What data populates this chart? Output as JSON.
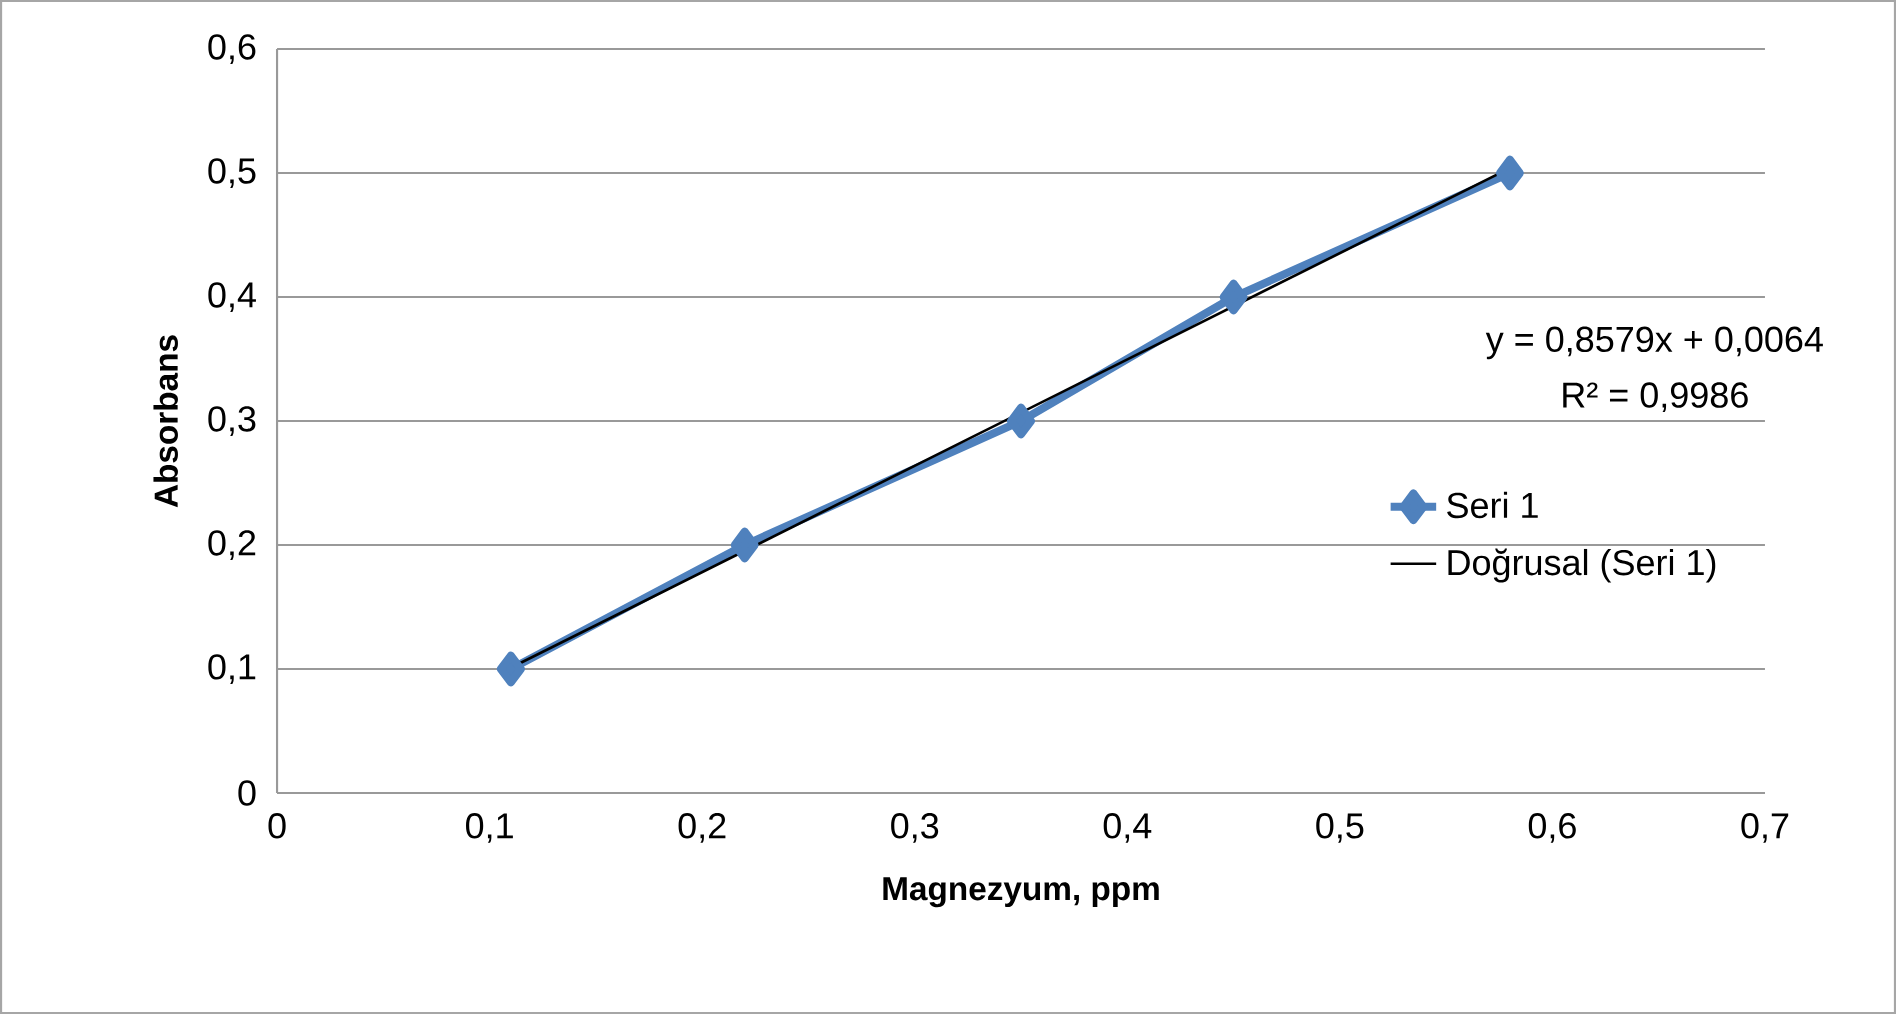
{
  "chart_data": {
    "type": "line",
    "xlabel": "Magnezyum, ppm",
    "ylabel": "Absorbans",
    "x": [
      0.11,
      0.22,
      0.35,
      0.45,
      0.58
    ],
    "series": [
      {
        "name": "Seri 1",
        "color": "#4f81bd",
        "values": [
          0.1,
          0.2,
          0.3,
          0.4,
          0.5
        ],
        "marker": "diamond"
      },
      {
        "name": "Doğrusal (Seri 1)",
        "type": "line",
        "color": "#000000",
        "x": [
          0.11,
          0.58
        ],
        "values": [
          0.101,
          0.504
        ],
        "marker": "none"
      }
    ],
    "xlim": [
      0,
      0.7
    ],
    "ylim": [
      0,
      0.6
    ],
    "xticks": [
      0,
      {
        "value": 0.1,
        "label": "0,1"
      },
      {
        "value": 0.2,
        "label": "0,2"
      },
      {
        "value": 0.3,
        "label": "0,3"
      },
      {
        "value": 0.4,
        "label": "0,4"
      },
      {
        "value": 0.5,
        "label": "0,5"
      },
      {
        "value": 0.6,
        "label": "0,6"
      },
      {
        "value": 0.7,
        "label": "0,7"
      }
    ],
    "yticks": [
      0,
      {
        "value": 0.1,
        "label": "0,1"
      },
      {
        "value": 0.2,
        "label": "0,2"
      },
      {
        "value": 0.3,
        "label": "0,3"
      },
      {
        "value": 0.4,
        "label": "0,4"
      },
      {
        "value": 0.5,
        "label": "0,5"
      },
      {
        "value": 0.6,
        "label": "0,6"
      }
    ],
    "annotations": [
      "y = 0,8579x + 0,0064",
      "R² = 0,9986"
    ],
    "grid": "y",
    "legend": "right"
  }
}
